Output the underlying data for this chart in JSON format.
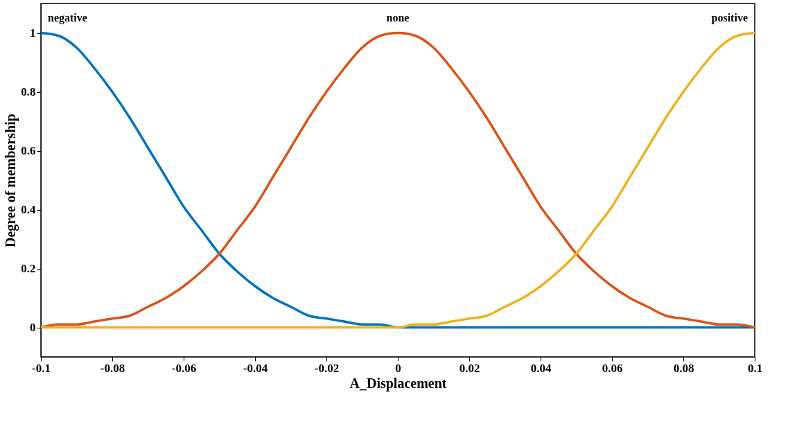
{
  "chart_data": {
    "type": "line",
    "xlabel": "A_Displacement",
    "ylabel": "Degree of membership",
    "x": [
      -0.1,
      -0.095,
      -0.09,
      -0.085,
      -0.08,
      -0.075,
      -0.07,
      -0.065,
      -0.06,
      -0.055,
      -0.05,
      -0.045,
      -0.04,
      -0.035,
      -0.03,
      -0.025,
      -0.02,
      -0.015,
      -0.01,
      -0.005,
      0,
      0.005,
      0.01,
      0.015,
      0.02,
      0.025,
      0.03,
      0.035,
      0.04,
      0.045,
      0.05,
      0.055,
      0.06,
      0.065,
      0.07,
      0.075,
      0.08,
      0.085,
      0.09,
      0.095,
      0.1
    ],
    "series": [
      {
        "name": "negative",
        "color": "#0072bd",
        "values": [
          1,
          0.99,
          0.95,
          0.88,
          0.8,
          0.71,
          0.61,
          0.51,
          0.41,
          0.33,
          0.25,
          0.19,
          0.14,
          0.1,
          0.07,
          0.04,
          0.03,
          0.02,
          0.01,
          0.01,
          0,
          0,
          0,
          0,
          0,
          0,
          0,
          0,
          0,
          0,
          0,
          0,
          0,
          0,
          0,
          0,
          0,
          0,
          0,
          0,
          0
        ]
      },
      {
        "name": "none",
        "color": "#d95319",
        "values": [
          0,
          0.01,
          0.01,
          0.02,
          0.03,
          0.04,
          0.07,
          0.1,
          0.14,
          0.19,
          0.25,
          0.33,
          0.41,
          0.51,
          0.61,
          0.71,
          0.8,
          0.88,
          0.95,
          0.99,
          1,
          0.99,
          0.95,
          0.88,
          0.8,
          0.71,
          0.61,
          0.51,
          0.41,
          0.33,
          0.25,
          0.19,
          0.14,
          0.1,
          0.07,
          0.04,
          0.03,
          0.02,
          0.01,
          0.01,
          0
        ]
      },
      {
        "name": "positive",
        "color": "#edb120",
        "values": [
          0,
          0,
          0,
          0,
          0,
          0,
          0,
          0,
          0,
          0,
          0,
          0,
          0,
          0,
          0,
          0,
          0,
          0,
          0,
          0,
          0,
          0.01,
          0.01,
          0.02,
          0.03,
          0.04,
          0.07,
          0.1,
          0.14,
          0.19,
          0.25,
          0.33,
          0.41,
          0.51,
          0.61,
          0.71,
          0.8,
          0.88,
          0.95,
          0.99,
          1
        ]
      }
    ],
    "xlim": [
      -0.1,
      0.1
    ],
    "xticks": [
      -0.1,
      -0.08,
      -0.06,
      -0.04,
      -0.02,
      0,
      0.02,
      0.04,
      0.06,
      0.08,
      0.1
    ],
    "ylim": [
      -0.1,
      1.1
    ],
    "yticks": [
      0,
      0.2,
      0.4,
      0.6,
      0.8,
      1
    ],
    "grid": false,
    "legend": false,
    "marker": "none",
    "line_style": "solid"
  }
}
